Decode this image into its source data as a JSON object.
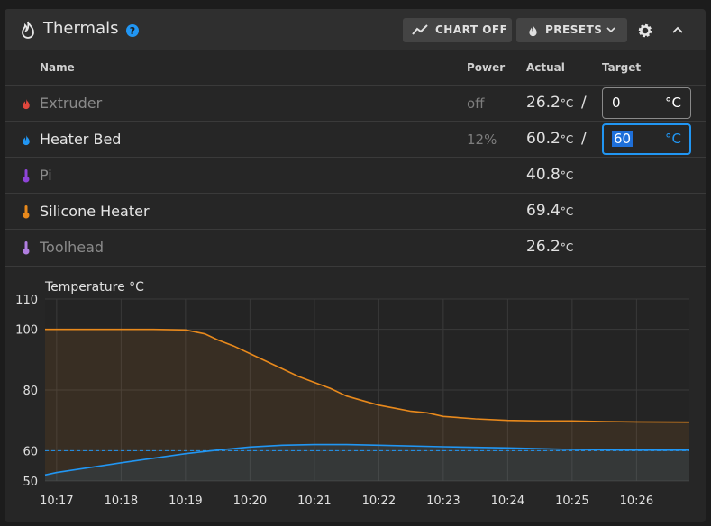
{
  "header": {
    "title": "Thermals",
    "buttons": [
      "CHART OFF",
      "PRESETS"
    ]
  },
  "table": {
    "columns": [
      "Name",
      "Power",
      "Actual",
      "Target"
    ],
    "unit": "°C",
    "rows": [
      {
        "name": "Extruder",
        "power": "off",
        "actual": "26.2",
        "target": 0,
        "color": "#e0473d"
      },
      {
        "name": "Heater Bed",
        "power": "12%",
        "actual": "60.2",
        "target": 60,
        "color": "#2196f3"
      },
      {
        "name": "Pi",
        "actual": "40.8",
        "color": "#8e44d8"
      },
      {
        "name": "Silicone Heater",
        "actual": "69.4",
        "color": "#e8891c"
      },
      {
        "name": "Toolhead",
        "actual": "26.2",
        "color": "#b07ee0"
      }
    ]
  },
  "chart": {
    "type": "line",
    "title": "Temperature °C",
    "xlim": [
      616.82,
      626.82
    ],
    "xticks": [
      {
        "value": 617,
        "label": "10:17"
      },
      {
        "value": 618,
        "label": "10:18"
      },
      {
        "value": 619,
        "label": "10:19"
      },
      {
        "value": 620,
        "label": "10:20"
      },
      {
        "value": 621,
        "label": "10:21"
      },
      {
        "value": 622,
        "label": "10:22"
      },
      {
        "value": 623,
        "label": "10:23"
      },
      {
        "value": 624,
        "label": "10:24"
      },
      {
        "value": 625,
        "label": "10:25"
      },
      {
        "value": 626,
        "label": "10:26"
      }
    ],
    "ylim": [
      50,
      110
    ],
    "yticks": [
      50,
      60,
      80,
      100,
      110
    ],
    "grid": true,
    "series": [
      {
        "color": "#e8891c",
        "x": [
          616.82,
          617.5,
          618,
          618.5,
          619,
          619.3,
          619.5,
          619.75,
          620,
          620.25,
          620.5,
          620.75,
          621,
          621.25,
          621.5,
          621.75,
          622,
          622.25,
          622.5,
          622.75,
          623,
          623.5,
          624,
          624.5,
          625,
          625.5,
          626,
          626.82
        ],
        "values": [
          100,
          100,
          100,
          100,
          99.8,
          98.5,
          96.5,
          94.5,
          92,
          89.5,
          87,
          84.5,
          82.5,
          80.5,
          78,
          76.5,
          75,
          74,
          73,
          72.5,
          71.3,
          70.5,
          70,
          69.8,
          69.8,
          69.6,
          69.5,
          69.4
        ]
      },
      {
        "color": "#2196f3",
        "x": [
          616.82,
          617,
          618,
          619,
          619.5,
          620,
          620.5,
          621,
          621.5,
          622,
          623,
          624,
          625,
          626,
          626.82
        ],
        "values": [
          52,
          52.8,
          56,
          59,
          60.2,
          61.2,
          61.8,
          62,
          62,
          61.8,
          61.3,
          60.9,
          60.4,
          60.2,
          60.2
        ]
      }
    ]
  }
}
